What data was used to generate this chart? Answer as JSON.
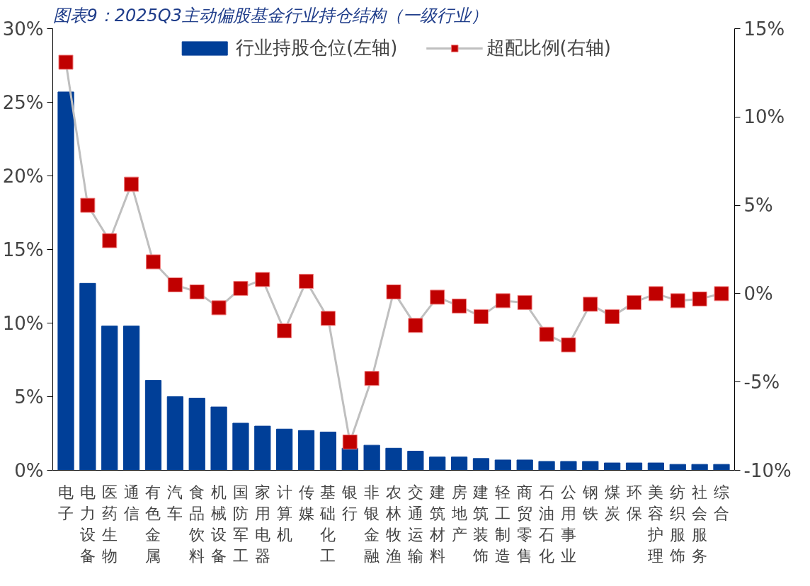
{
  "chart_data": {
    "type": "bar",
    "title": "图表9：2025Q3主动偏股基金行业持仓结构（一级行业）",
    "categories": [
      "电子",
      "电力设备",
      "医药生物",
      "通信",
      "有色金属",
      "汽车",
      "食品饮料",
      "机械设备",
      "国防军工",
      "家用电器",
      "计算机",
      "传媒",
      "基础化工",
      "银行",
      "非银金融",
      "农林牧渔",
      "交通运输",
      "建筑材料",
      "房地产",
      "建筑装饰",
      "轻工制造",
      "商贸零售",
      "石油石化",
      "公用事业",
      "钢铁",
      "煤炭",
      "环保",
      "美容护理",
      "纺织服饰",
      "社会服务",
      "综合"
    ],
    "series": [
      {
        "name": "行业持股仓位(左轴)",
        "color": "#003f98",
        "values": [
          25.7,
          12.7,
          9.8,
          9.8,
          6.1,
          5.0,
          4.9,
          4.3,
          3.2,
          3.0,
          2.8,
          2.7,
          2.6,
          1.5,
          1.7,
          1.5,
          1.3,
          0.9,
          0.9,
          0.8,
          0.7,
          0.7,
          0.6,
          0.6,
          0.6,
          0.5,
          0.5,
          0.5,
          0.4,
          0.4,
          0.4
        ]
      },
      {
        "name": "超配比例(右轴)",
        "type": "line",
        "axis": "y2",
        "color": "#c00000",
        "marker": "square",
        "values": [
          13.1,
          5.0,
          3.0,
          6.2,
          1.8,
          0.5,
          0.1,
          -0.8,
          0.3,
          0.8,
          -2.1,
          0.7,
          -1.4,
          -8.4,
          -4.8,
          0.1,
          -1.8,
          -0.2,
          -0.7,
          -1.3,
          -0.4,
          -0.5,
          -2.3,
          -2.9,
          -0.6,
          -1.3,
          -0.5,
          0.0,
          -0.4,
          -0.3,
          0.0
        ]
      }
    ],
    "ylim": [
      0,
      30
    ],
    "yticks": [
      {
        "value": 0,
        "label": "0%"
      },
      {
        "value": 5,
        "label": "5%"
      },
      {
        "value": 10,
        "label": "10%"
      },
      {
        "value": 15,
        "label": "15%"
      },
      {
        "value": 20,
        "label": "20%"
      },
      {
        "value": 25,
        "label": "25%"
      },
      {
        "value": 30,
        "label": "30%"
      }
    ],
    "y2lim": [
      -10,
      15
    ],
    "y2ticks": [
      {
        "value": -10,
        "label": "-10%"
      },
      {
        "value": -5,
        "label": "-5%"
      },
      {
        "value": 0,
        "label": "0%"
      },
      {
        "value": 5,
        "label": "5%"
      },
      {
        "value": 10,
        "label": "10%"
      },
      {
        "value": 15,
        "label": "15%"
      }
    ],
    "legend": "top"
  }
}
